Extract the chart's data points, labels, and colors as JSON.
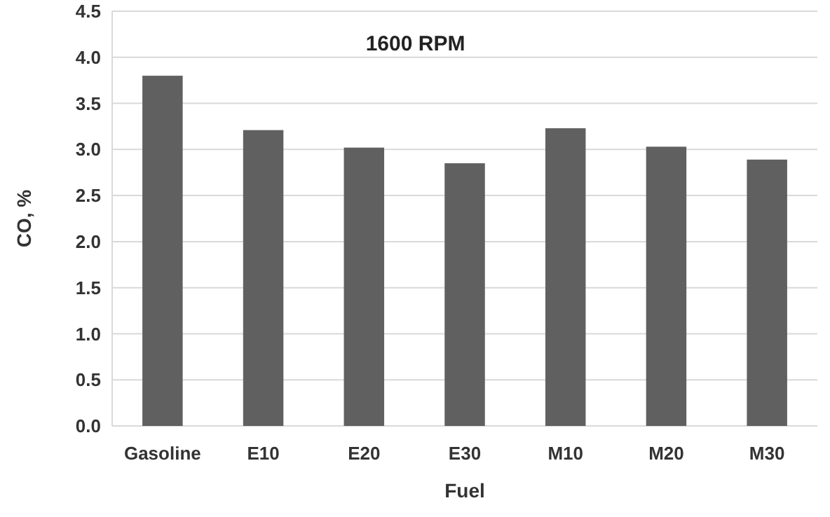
{
  "chart_data": {
    "type": "bar",
    "title": "1600 RPM",
    "xlabel": "Fuel",
    "ylabel": "CO, %",
    "categories": [
      "Gasoline",
      "E10",
      "E20",
      "E30",
      "M10",
      "M20",
      "M30"
    ],
    "values": [
      3.8,
      3.21,
      3.02,
      2.85,
      3.23,
      3.03,
      2.89
    ],
    "color": "#606060",
    "ylim": [
      0,
      4.5
    ],
    "yticks": [
      {
        "value": 0,
        "label": "0.0"
      },
      {
        "value": 0.5,
        "label": "0.5"
      },
      {
        "value": 1,
        "label": "1.0"
      },
      {
        "value": 1.5,
        "label": "1.5"
      },
      {
        "value": 2,
        "label": "2.0"
      },
      {
        "value": 2.5,
        "label": "2.5"
      },
      {
        "value": 3,
        "label": "3.0"
      },
      {
        "value": 3.5,
        "label": "3.5"
      },
      {
        "value": 4,
        "label": "4.0"
      },
      {
        "value": 4.5,
        "label": "4.5"
      }
    ],
    "grid": "y"
  }
}
